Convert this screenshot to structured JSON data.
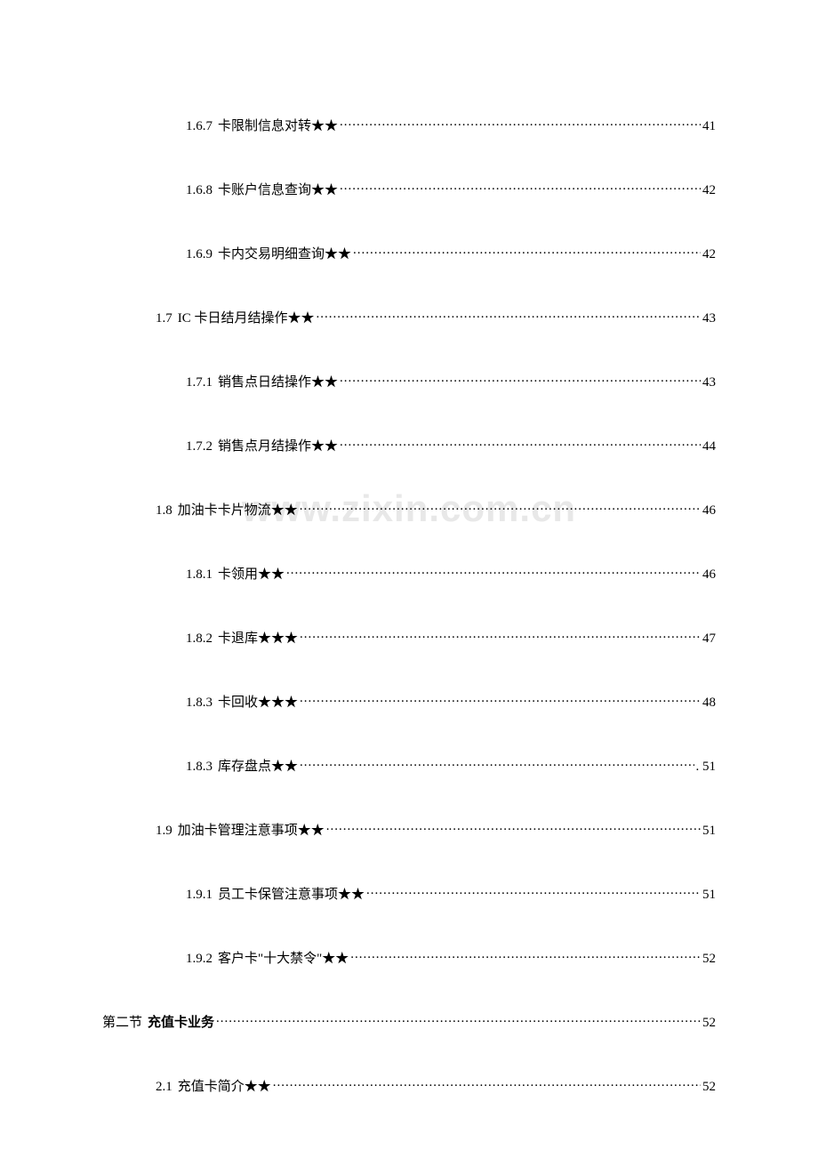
{
  "watermark": "www.zixin.com.cn",
  "toc": [
    {
      "level": 3,
      "num": "1.6.7",
      "label": "卡限制信息对转★★",
      "page": "41"
    },
    {
      "level": 3,
      "num": "1.6.8",
      "label": "卡账户信息查询★★",
      "page": "42"
    },
    {
      "level": 3,
      "num": "1.6.9",
      "label": "卡内交易明细查询★★",
      "page": "42"
    },
    {
      "level": 2,
      "num": "1.7",
      "label": "IC 卡日结月结操作★★",
      "page": "43"
    },
    {
      "level": 3,
      "num": "1.7.1",
      "label": " 销售点日结操作★★",
      "page": "43"
    },
    {
      "level": 3,
      "num": "1.7.2",
      "label": " 销售点月结操作★★",
      "page": "44"
    },
    {
      "level": 2,
      "num": "1.8",
      "label": "加油卡卡片物流★★",
      "page": "46"
    },
    {
      "level": 3,
      "num": "1.8.1",
      "label": "卡领用★★",
      "page": "46"
    },
    {
      "level": 3,
      "num": "1.8.2",
      "label": "卡退库★★★",
      "page": "47"
    },
    {
      "level": 3,
      "num": "1.8.3",
      "label": "卡回收★★★",
      "page": "48"
    },
    {
      "level": 3,
      "num": "1.8.3",
      "label": "库存盘点★★",
      "page": ". 51"
    },
    {
      "level": 2,
      "num": "1.9",
      "label": "加油卡管理注意事项★★",
      "page": "51"
    },
    {
      "level": 3,
      "num": "1.9.1",
      "label": " 员工卡保管注意事项★★",
      "page": "51"
    },
    {
      "level": 3,
      "num": "1.9.2",
      "label": " 客户卡\"十大禁令\"★★",
      "page": "52"
    },
    {
      "level": 1,
      "num": "第二节",
      "label": " 充值卡业务",
      "page": "52"
    },
    {
      "level": 2,
      "num": "2.1",
      "label": "充值卡简介★★",
      "page": "52"
    }
  ]
}
